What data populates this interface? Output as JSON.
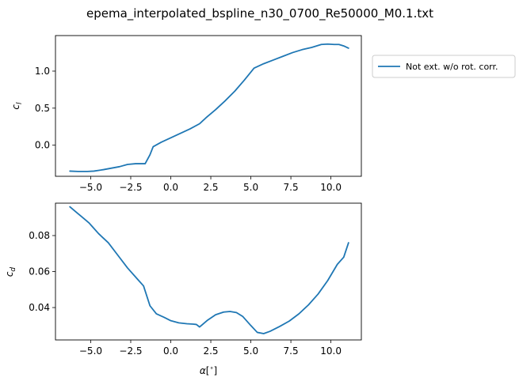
{
  "chart_data": [
    {
      "type": "line",
      "title": "epema_interpolated_bspline_n30_0700_Re50000_M0.1.txt",
      "xlabel": "",
      "ylabel": "c_l",
      "xlim": [
        -7.2,
        11.9
      ],
      "ylim": [
        -0.42,
        1.48
      ],
      "xticks": [
        -5.0,
        -2.5,
        0.0,
        2.5,
        5.0,
        7.5,
        10.0
      ],
      "xtick_labels": [
        "−5.0",
        "−2.5",
        "0.0",
        "2.5",
        "5.0",
        "7.5",
        "10.0"
      ],
      "yticks": [
        0.0,
        0.5,
        1.0
      ],
      "ytick_labels": [
        "0.0",
        "0.5",
        "1.0"
      ],
      "grid": false,
      "legend": "outside-right",
      "series": [
        {
          "name": "Not ext. w/o rot. corr.",
          "color": "#1f77b4",
          "x": [
            -6.3,
            -5.8,
            -5.2,
            -4.8,
            -4.2,
            -3.7,
            -3.2,
            -2.7,
            -2.2,
            -1.6,
            -1.3,
            -1.1,
            -0.6,
            0.0,
            0.6,
            1.2,
            1.8,
            2.2,
            2.8,
            3.4,
            4.0,
            4.6,
            5.2,
            5.8,
            6.4,
            7.0,
            7.6,
            8.2,
            8.8,
            9.4,
            9.8,
            10.2,
            10.5,
            10.8,
            11.1
          ],
          "y": [
            -0.35,
            -0.355,
            -0.355,
            -0.35,
            -0.33,
            -0.31,
            -0.29,
            -0.26,
            -0.25,
            -0.25,
            -0.13,
            -0.02,
            0.04,
            0.1,
            0.16,
            0.22,
            0.29,
            0.37,
            0.48,
            0.6,
            0.73,
            0.88,
            1.04,
            1.1,
            1.15,
            1.2,
            1.25,
            1.29,
            1.32,
            1.36,
            1.365,
            1.36,
            1.36,
            1.34,
            1.31
          ]
        }
      ]
    },
    {
      "type": "line",
      "title": "",
      "xlabel": "α[°]",
      "ylabel": "c_d",
      "xlim": [
        -7.2,
        11.9
      ],
      "ylim": [
        0.022,
        0.098
      ],
      "xticks": [
        -5.0,
        -2.5,
        0.0,
        2.5,
        5.0,
        7.5,
        10.0
      ],
      "xtick_labels": [
        "−5.0",
        "−2.5",
        "0.0",
        "2.5",
        "5.0",
        "7.5",
        "10.0"
      ],
      "yticks": [
        0.04,
        0.06,
        0.08
      ],
      "ytick_labels": [
        "0.04",
        "0.06",
        "0.08"
      ],
      "grid": false,
      "series": [
        {
          "name": "Not ext. w/o rot. corr.",
          "color": "#1f77b4",
          "x": [
            -6.3,
            -5.9,
            -5.5,
            -5.1,
            -4.9,
            -4.5,
            -3.9,
            -3.3,
            -2.7,
            -2.1,
            -1.7,
            -1.3,
            -0.9,
            -0.4,
            0.0,
            0.5,
            1.0,
            1.4,
            1.6,
            1.8,
            2.3,
            2.8,
            3.3,
            3.7,
            4.1,
            4.5,
            5.0,
            5.4,
            5.8,
            6.2,
            6.8,
            7.4,
            8.0,
            8.6,
            9.2,
            9.8,
            10.4,
            10.8,
            11.1
          ],
          "y": [
            0.096,
            0.093,
            0.09,
            0.087,
            0.085,
            0.081,
            0.076,
            0.069,
            0.062,
            0.056,
            0.052,
            0.041,
            0.0365,
            0.0345,
            0.0327,
            0.0315,
            0.031,
            0.0308,
            0.0306,
            0.0292,
            0.033,
            0.036,
            0.0375,
            0.0378,
            0.0372,
            0.035,
            0.03,
            0.0262,
            0.0255,
            0.0268,
            0.0295,
            0.0325,
            0.0365,
            0.0415,
            0.0475,
            0.055,
            0.064,
            0.068,
            0.076
          ]
        }
      ]
    }
  ]
}
